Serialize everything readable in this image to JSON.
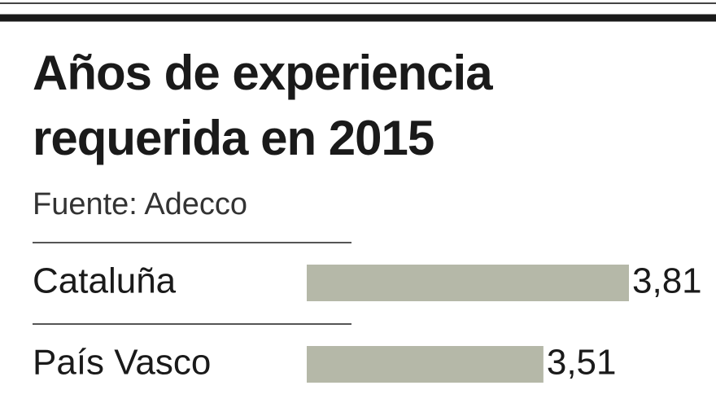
{
  "chart_data": {
    "type": "hbar",
    "title": "Años de experiencia requerida en 2015",
    "subtitle": "Fuente: Adecco",
    "categories": [
      "Cataluña",
      "País Vasco"
    ],
    "values": [
      3.81,
      3.51
    ],
    "value_labels": [
      "3,81",
      "3,51"
    ],
    "color": "#b5b8a8",
    "xlim": [
      2.68,
      3.81
    ]
  }
}
